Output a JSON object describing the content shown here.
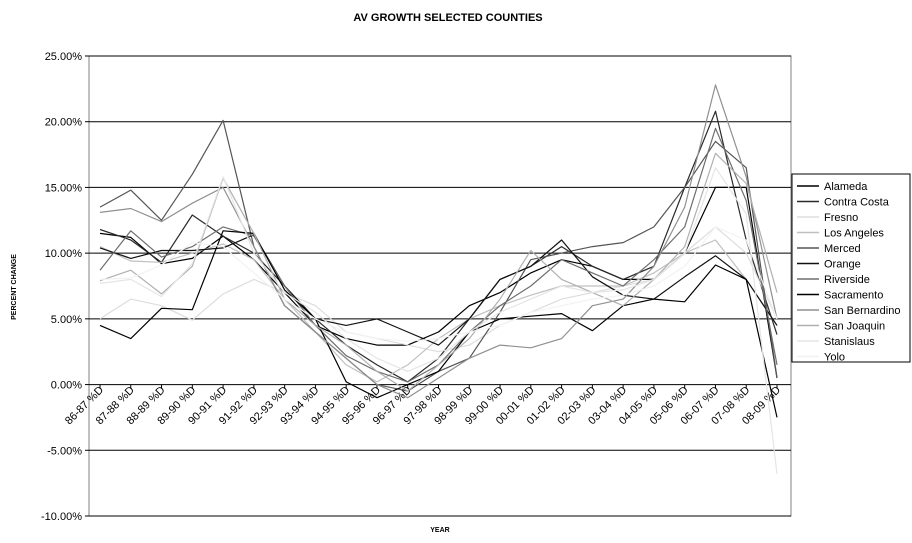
{
  "chart_data": {
    "type": "line",
    "title": "AV GROWTH SELECTED COUNTIES",
    "xlabel": "YEAR",
    "ylabel": "PERCENT CHANGE",
    "ylim": [
      -0.1,
      0.25
    ],
    "y_ticks": [
      0.25,
      0.2,
      0.15,
      0.1,
      0.05,
      0.0,
      -0.05,
      -0.1
    ],
    "y_tick_labels": [
      "25.00%",
      "20.00%",
      "15.00%",
      "10.00%",
      "5.00%",
      "0.00%",
      "-5.00%",
      "-10.00%"
    ],
    "categories": [
      "86-87 %D",
      "87-88 %D",
      "88-89 %D",
      "89-90 %D",
      "90-91 %D",
      "91-92 %D",
      "92-93 %D",
      "93-94 %D",
      "94-95 %D",
      "95-96 %D",
      "96-97 %D",
      "97-98 %D",
      "98-99 %D",
      "99-00 %D",
      "00-01 %D",
      "01-02 %D",
      "02-03 %D",
      "03-04 %D",
      "04-05 %D",
      "05-06 %D",
      "06-07 %D",
      "07-08 %D",
      "08-09 %D"
    ],
    "grid": true,
    "legend_position": "right",
    "series": [
      {
        "name": "Alameda",
        "color": "#000000",
        "values": [
          0.115,
          0.112,
          0.092,
          0.096,
          0.113,
          0.095,
          0.07,
          0.045,
          0.035,
          0.03,
          0.03,
          0.04,
          0.06,
          0.07,
          0.085,
          0.095,
          0.09,
          0.08,
          0.08,
          0.1,
          0.15,
          0.15,
          0.005
        ]
      },
      {
        "name": "Contra Costa",
        "color": "#2a2a2a",
        "values": [
          0.118,
          0.11,
          0.093,
          0.129,
          0.113,
          0.1,
          0.075,
          0.05,
          0.03,
          0.015,
          0.002,
          0.02,
          0.05,
          0.08,
          0.09,
          0.105,
          0.09,
          0.08,
          0.09,
          0.15,
          0.208,
          0.11,
          0.038
        ]
      },
      {
        "name": "Fresno",
        "color": "#dddddd",
        "values": [
          0.05,
          0.065,
          0.06,
          0.049,
          0.069,
          0.08,
          0.07,
          0.06,
          0.04,
          0.035,
          0.03,
          0.025,
          0.03,
          0.045,
          0.055,
          0.065,
          0.07,
          0.075,
          0.08,
          0.1,
          0.12,
          0.1,
          0.05
        ]
      },
      {
        "name": "Los Angeles",
        "color": "#c0c0c0",
        "values": [
          0.105,
          0.094,
          0.093,
          0.1,
          0.107,
          0.095,
          0.065,
          0.04,
          0.015,
          0.002,
          0.015,
          0.035,
          0.05,
          0.06,
          0.068,
          0.075,
          0.075,
          0.075,
          0.085,
          0.1,
          0.11,
          0.08,
          0.045
        ]
      },
      {
        "name": "Merced",
        "color": "#555555",
        "values": [
          0.135,
          0.148,
          0.125,
          0.16,
          0.201,
          0.105,
          0.06,
          0.04,
          0.02,
          0.0,
          -0.005,
          0.01,
          0.02,
          0.055,
          0.095,
          0.1,
          0.105,
          0.108,
          0.12,
          0.15,
          0.185,
          0.165,
          0.005
        ]
      },
      {
        "name": "Orange",
        "color": "#111111",
        "values": [
          0.104,
          0.096,
          0.102,
          0.102,
          0.104,
          0.114,
          0.075,
          0.05,
          0.045,
          0.05,
          0.04,
          0.03,
          0.05,
          0.08,
          0.09,
          0.11,
          0.082,
          0.068,
          0.065,
          0.082,
          0.098,
          0.08,
          0.045
        ]
      },
      {
        "name": "Riverside",
        "color": "#6e6e6e",
        "values": [
          0.087,
          0.117,
          0.097,
          0.105,
          0.12,
          0.113,
          0.075,
          0.045,
          0.022,
          0.01,
          0.002,
          0.015,
          0.04,
          0.06,
          0.075,
          0.095,
          0.085,
          0.075,
          0.095,
          0.12,
          0.195,
          0.14,
          0.015
        ]
      },
      {
        "name": "Sacramento",
        "color": "#000000",
        "values": [
          0.045,
          0.035,
          0.058,
          0.057,
          0.117,
          0.115,
          0.072,
          0.05,
          0.002,
          -0.01,
          0.0,
          0.01,
          0.04,
          0.05,
          0.052,
          0.054,
          0.041,
          0.06,
          0.065,
          0.063,
          0.091,
          0.08,
          -0.025
        ]
      },
      {
        "name": "San Bernardino",
        "color": "#909090",
        "values": [
          0.131,
          0.134,
          0.124,
          0.138,
          0.15,
          0.105,
          0.06,
          0.04,
          0.02,
          0.0,
          -0.01,
          0.005,
          0.02,
          0.03,
          0.028,
          0.035,
          0.06,
          0.065,
          0.09,
          0.135,
          0.228,
          0.158,
          0.05
        ]
      },
      {
        "name": "San Joaquin",
        "color": "#b0b0b0",
        "values": [
          0.079,
          0.087,
          0.069,
          0.09,
          0.157,
          0.115,
          0.065,
          0.045,
          0.03,
          0.01,
          -0.005,
          0.015,
          0.035,
          0.065,
          0.102,
          0.08,
          0.07,
          0.06,
          0.08,
          0.105,
          0.176,
          0.153,
          0.07
        ]
      },
      {
        "name": "Stanislaus",
        "color": "#e5e5e5",
        "values": [
          0.077,
          0.08,
          0.067,
          0.092,
          0.158,
          0.1,
          0.07,
          0.055,
          0.035,
          0.02,
          0.01,
          0.02,
          0.04,
          0.055,
          0.065,
          0.075,
          0.07,
          0.072,
          0.08,
          0.1,
          0.165,
          0.13,
          -0.068
        ]
      },
      {
        "name": "Yolo",
        "color": "#f2f2f2",
        "values": [
          0.08,
          0.081,
          0.091,
          0.108,
          0.105,
          0.085,
          0.065,
          0.05,
          0.04,
          0.035,
          0.033,
          0.035,
          0.04,
          0.045,
          0.055,
          0.06,
          0.065,
          0.068,
          0.075,
          0.09,
          0.12,
          0.11,
          0.05
        ]
      }
    ]
  }
}
